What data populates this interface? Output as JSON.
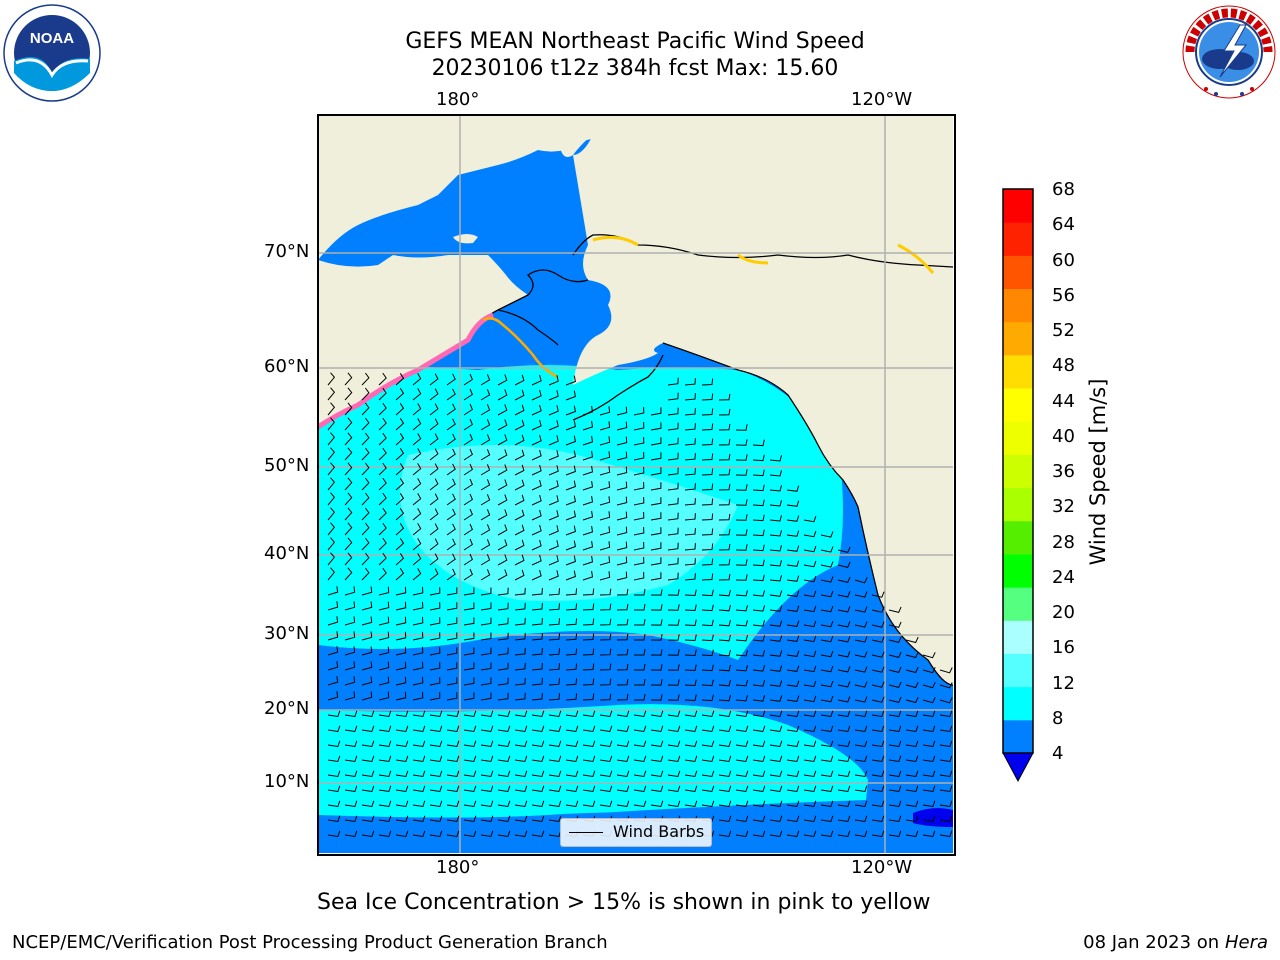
{
  "header": {
    "title_line1": "GEFS MEAN Northeast Pacific Wind Speed",
    "title_line2": "20230106 t12z 384h fcst   Max: 15.60"
  },
  "map": {
    "lon_labels_top": [
      "180°",
      "120°W"
    ],
    "lon_labels_bottom": [
      "180°",
      "120°W"
    ],
    "lat_labels": [
      "70°N",
      "60°N",
      "50°N",
      "40°N",
      "30°N",
      "20°N",
      "10°N"
    ],
    "legend_label": "Wind Barbs",
    "colors": {
      "land": "#efefdb",
      "ocean_4_8": "#0080ff",
      "ocean_8_12": "#00ffff",
      "ocean_12_16": "#55ffff",
      "ocean_16_20": "#aaffff",
      "sea_ice": "#ff69b4"
    }
  },
  "colorbar": {
    "title": "Wind Speed [m/s]",
    "ticks": [
      "68",
      "64",
      "60",
      "56",
      "52",
      "48",
      "44",
      "40",
      "36",
      "32",
      "28",
      "24",
      "20",
      "16",
      "12",
      "8",
      "4"
    ],
    "colors": [
      "#0080ff",
      "#00ffff",
      "#55ffff",
      "#aaffff",
      "#55ff80",
      "#00ff00",
      "#55ee00",
      "#aaff00",
      "#ccff00",
      "#eeff00",
      "#ffff00",
      "#ffdd00",
      "#ffaa00",
      "#ff8800",
      "#ff5500",
      "#ff2200",
      "#ff0000"
    ],
    "extend_color": "#0000ee"
  },
  "caption": "Sea Ice Concentration > 15% is shown in pink to yellow",
  "footer": {
    "left": "NCEP/EMC/Verification Post Processing Product Generation Branch",
    "date": "08 Jan 2023 on ",
    "machine": "Hera"
  },
  "logos": {
    "noaa": "NOAA",
    "nws_ring_text": "NATIONAL WEATHER SERVICE"
  }
}
